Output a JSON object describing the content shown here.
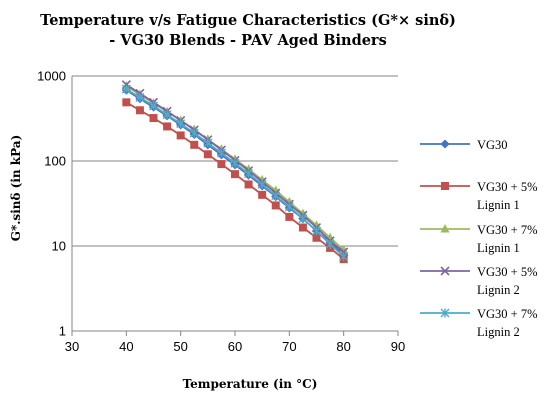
{
  "chart_data": {
    "type": "line",
    "title_lines": [
      "Temperature v/s Fatigue Characteristics (G*× sinδ)",
      "- VG30 Blends - PAV Aged Binders"
    ],
    "xlabel": "Temperature (in °C)",
    "ylabel": "G*.sinδ (in kPa)",
    "xlim": [
      30,
      90
    ],
    "xticks": [
      30,
      40,
      50,
      60,
      70,
      80,
      90
    ],
    "ylim": [
      1,
      1000
    ],
    "yscale": "log",
    "yticks": [
      1,
      10,
      100,
      1000
    ],
    "ytick_labels": [
      "1",
      "10",
      "100",
      "1000"
    ],
    "grid": "horizontal major lines",
    "legend_position": "right",
    "x": [
      40,
      42.5,
      45,
      47.5,
      50,
      52.5,
      55,
      57.5,
      60,
      62.5,
      65,
      67.5,
      70,
      72.5,
      75,
      77.5,
      80
    ],
    "series": [
      {
        "name": "VG30",
        "legend_lines": [
          "VG30"
        ],
        "color": "#4472C4",
        "marker": "diamond",
        "values": [
          680,
          540,
          430,
          340,
          265,
          205,
          155,
          118,
          90,
          68,
          51,
          38,
          28,
          21,
          15,
          11,
          8
        ]
      },
      {
        "name": "VG30 + 5% Lignin 1",
        "legend_lines": [
          "VG30 + 5%",
          "Lignin 1"
        ],
        "color": "#C0504D",
        "marker": "square",
        "values": [
          490,
          395,
          320,
          255,
          200,
          155,
          120,
          92,
          70,
          53,
          40,
          30,
          22,
          16.5,
          12.5,
          9.5,
          7
        ]
      },
      {
        "name": "VG30 + 7% Lignin 1",
        "legend_lines": [
          "VG30 + 7%",
          "Lignin 1"
        ],
        "color": "#9BBB59",
        "marker": "triangle",
        "values": [
          760,
          605,
          480,
          380,
          300,
          235,
          180,
          138,
          105,
          80,
          60,
          45,
          33,
          24,
          17.5,
          12.5,
          9
        ]
      },
      {
        "name": "VG30 + 5% Lignin 2",
        "legend_lines": [
          "VG30 + 5%",
          "Lignin 2"
        ],
        "color": "#8064A2",
        "marker": "x",
        "values": [
          790,
          625,
          490,
          385,
          300,
          232,
          178,
          135,
          102,
          77,
          57,
          42,
          31,
          23,
          16.5,
          11.5,
          8.5
        ]
      },
      {
        "name": "VG30 + 7% Lignin 2",
        "legend_lines": [
          "VG30 + 7%",
          "Lignin 2"
        ],
        "color": "#4BACC6",
        "marker": "asterisk",
        "values": [
          700,
          560,
          445,
          350,
          275,
          213,
          163,
          124,
          94,
          71,
          53,
          39,
          29,
          21,
          15,
          10.5,
          7.5
        ]
      }
    ]
  }
}
